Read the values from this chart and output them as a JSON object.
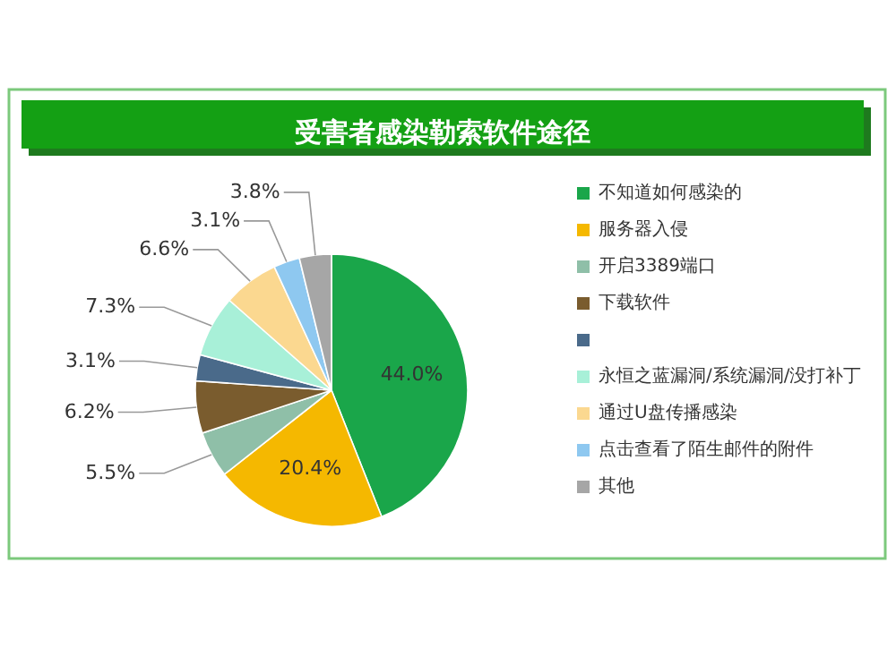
{
  "chart_data": {
    "type": "pie",
    "title": "受害者感染勒索软件途径",
    "categories": [
      "不知道如何感染的",
      "服务器入侵",
      "开启3389端口",
      "下载软件",
      null,
      "永恒之蓝漏洞/系统漏洞/没打补丁",
      "通过U盘传播感染",
      "点击查看了陌生邮件的附件",
      "其他"
    ],
    "values": [
      44.0,
      20.4,
      5.5,
      6.2,
      3.1,
      7.3,
      6.6,
      3.1,
      3.8
    ],
    "colors": [
      "#1aa64a",
      "#f5b800",
      "#8fbfa8",
      "#7a5c2e",
      "#4a6a8a",
      "#a8f0d8",
      "#fbd890",
      "#8ec8f0",
      "#a6a6a6"
    ],
    "value_labels": [
      "44.0%",
      "20.4%",
      "5.5%",
      "6.2%",
      "3.1%",
      "7.3%",
      "6.6%",
      "3.1%",
      "3.8%"
    ],
    "legend": "right"
  }
}
